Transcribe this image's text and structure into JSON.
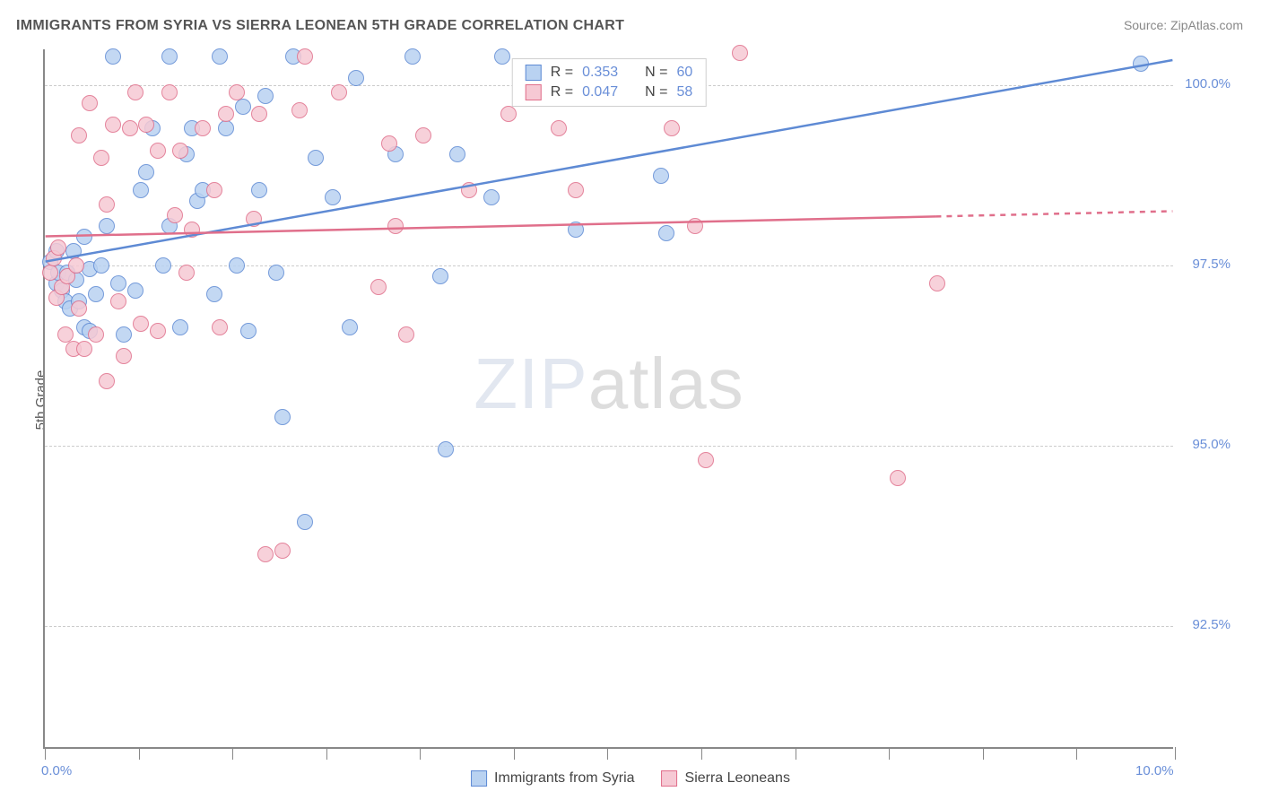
{
  "title": "IMMIGRANTS FROM SYRIA VS SIERRA LEONEAN 5TH GRADE CORRELATION CHART",
  "source": "Source: ZipAtlas.com",
  "ylabel": "5th Grade",
  "watermark": {
    "part1": "ZIP",
    "part2": "atlas"
  },
  "chart": {
    "type": "scatter",
    "xlim": [
      0.0,
      10.0
    ],
    "ylim": [
      90.8,
      100.5
    ],
    "x_ticks": [
      0.0,
      10.0
    ],
    "x_tick_labels": [
      "0.0%",
      "10.0%"
    ],
    "x_minor_ticks": [
      0.83,
      1.66,
      2.49,
      3.32,
      4.15,
      4.98,
      5.81,
      6.64,
      7.47,
      8.3,
      9.13
    ],
    "y_ticks": [
      92.5,
      95.0,
      97.5,
      100.0
    ],
    "y_tick_labels": [
      "92.5%",
      "95.0%",
      "97.5%",
      "100.0%"
    ],
    "background_color": "#ffffff",
    "grid_color": "#cccccc",
    "axis_color": "#888888",
    "tick_label_color": "#6a8fd8",
    "marker_radius": 9,
    "series": [
      {
        "name": "Immigrants from Syria",
        "fill": "#b9d2f1",
        "stroke": "#5e8ad4",
        "R": "0.353",
        "N": "60",
        "trend": {
          "x1": 0.0,
          "y1": 97.55,
          "x2": 10.0,
          "y2": 100.35,
          "dash_from_x": null
        },
        "points": [
          [
            0.05,
            97.55
          ],
          [
            0.1,
            97.25
          ],
          [
            0.1,
            97.7
          ],
          [
            0.12,
            97.4
          ],
          [
            0.15,
            97.15
          ],
          [
            0.18,
            97.0
          ],
          [
            0.2,
            97.4
          ],
          [
            0.22,
            96.9
          ],
          [
            0.25,
            97.7
          ],
          [
            0.28,
            97.3
          ],
          [
            0.3,
            97.0
          ],
          [
            0.35,
            96.65
          ],
          [
            0.35,
            97.9
          ],
          [
            0.4,
            97.45
          ],
          [
            0.4,
            96.6
          ],
          [
            0.45,
            97.1
          ],
          [
            0.5,
            97.5
          ],
          [
            0.55,
            98.05
          ],
          [
            0.6,
            100.4
          ],
          [
            0.65,
            97.25
          ],
          [
            0.7,
            96.55
          ],
          [
            0.8,
            97.15
          ],
          [
            0.85,
            98.55
          ],
          [
            0.9,
            98.8
          ],
          [
            0.95,
            99.4
          ],
          [
            1.05,
            97.5
          ],
          [
            1.1,
            100.4
          ],
          [
            1.1,
            98.05
          ],
          [
            1.2,
            96.65
          ],
          [
            1.25,
            99.05
          ],
          [
            1.3,
            99.4
          ],
          [
            1.35,
            98.4
          ],
          [
            1.4,
            98.55
          ],
          [
            1.5,
            97.1
          ],
          [
            1.55,
            100.4
          ],
          [
            1.6,
            99.4
          ],
          [
            1.7,
            97.5
          ],
          [
            1.75,
            99.7
          ],
          [
            1.8,
            96.6
          ],
          [
            1.9,
            98.55
          ],
          [
            1.95,
            99.85
          ],
          [
            2.05,
            97.4
          ],
          [
            2.1,
            95.4
          ],
          [
            2.2,
            100.4
          ],
          [
            2.3,
            93.95
          ],
          [
            2.4,
            99.0
          ],
          [
            2.55,
            98.45
          ],
          [
            2.7,
            96.65
          ],
          [
            2.75,
            100.1
          ],
          [
            3.1,
            99.05
          ],
          [
            3.25,
            100.4
          ],
          [
            3.5,
            97.35
          ],
          [
            3.55,
            94.95
          ],
          [
            3.65,
            99.05
          ],
          [
            3.95,
            98.45
          ],
          [
            4.05,
            100.4
          ],
          [
            4.7,
            98.0
          ],
          [
            5.45,
            98.75
          ],
          [
            5.5,
            97.95
          ],
          [
            9.7,
            100.3
          ]
        ]
      },
      {
        "name": "Sierra Leoneans",
        "fill": "#f6c9d4",
        "stroke": "#e06f8b",
        "R": "0.047",
        "N": "58",
        "trend": {
          "x1": 0.0,
          "y1": 97.9,
          "x2": 10.0,
          "y2": 98.25,
          "dash_from_x": 7.9
        },
        "points": [
          [
            0.05,
            97.4
          ],
          [
            0.08,
            97.6
          ],
          [
            0.1,
            97.05
          ],
          [
            0.12,
            97.75
          ],
          [
            0.15,
            97.2
          ],
          [
            0.18,
            96.55
          ],
          [
            0.2,
            97.35
          ],
          [
            0.25,
            96.35
          ],
          [
            0.28,
            97.5
          ],
          [
            0.3,
            96.9
          ],
          [
            0.3,
            99.3
          ],
          [
            0.35,
            96.35
          ],
          [
            0.4,
            99.75
          ],
          [
            0.45,
            96.55
          ],
          [
            0.5,
            99.0
          ],
          [
            0.55,
            98.35
          ],
          [
            0.55,
            95.9
          ],
          [
            0.6,
            99.45
          ],
          [
            0.65,
            97.0
          ],
          [
            0.7,
            96.25
          ],
          [
            0.75,
            99.4
          ],
          [
            0.8,
            99.9
          ],
          [
            0.85,
            96.7
          ],
          [
            0.9,
            99.45
          ],
          [
            1.0,
            96.6
          ],
          [
            1.0,
            99.1
          ],
          [
            1.1,
            99.9
          ],
          [
            1.15,
            98.2
          ],
          [
            1.2,
            99.1
          ],
          [
            1.25,
            97.4
          ],
          [
            1.3,
            98.0
          ],
          [
            1.4,
            99.4
          ],
          [
            1.5,
            98.55
          ],
          [
            1.55,
            96.65
          ],
          [
            1.6,
            99.6
          ],
          [
            1.7,
            99.9
          ],
          [
            1.85,
            98.15
          ],
          [
            1.9,
            99.6
          ],
          [
            1.95,
            93.5
          ],
          [
            2.1,
            93.55
          ],
          [
            2.25,
            99.65
          ],
          [
            2.3,
            100.4
          ],
          [
            2.6,
            99.9
          ],
          [
            2.95,
            97.2
          ],
          [
            3.05,
            99.2
          ],
          [
            3.1,
            98.05
          ],
          [
            3.2,
            96.55
          ],
          [
            3.35,
            99.3
          ],
          [
            3.75,
            98.55
          ],
          [
            4.1,
            99.6
          ],
          [
            4.55,
            99.4
          ],
          [
            4.7,
            98.55
          ],
          [
            5.55,
            99.4
          ],
          [
            5.75,
            98.05
          ],
          [
            5.85,
            94.8
          ],
          [
            6.15,
            100.45
          ],
          [
            7.55,
            94.55
          ],
          [
            7.9,
            97.25
          ]
        ]
      }
    ]
  },
  "legend_top": {
    "R_label": "R =",
    "N_label": "N ="
  },
  "legend_bottom": {
    "items": [
      "Immigrants from Syria",
      "Sierra Leoneans"
    ]
  }
}
